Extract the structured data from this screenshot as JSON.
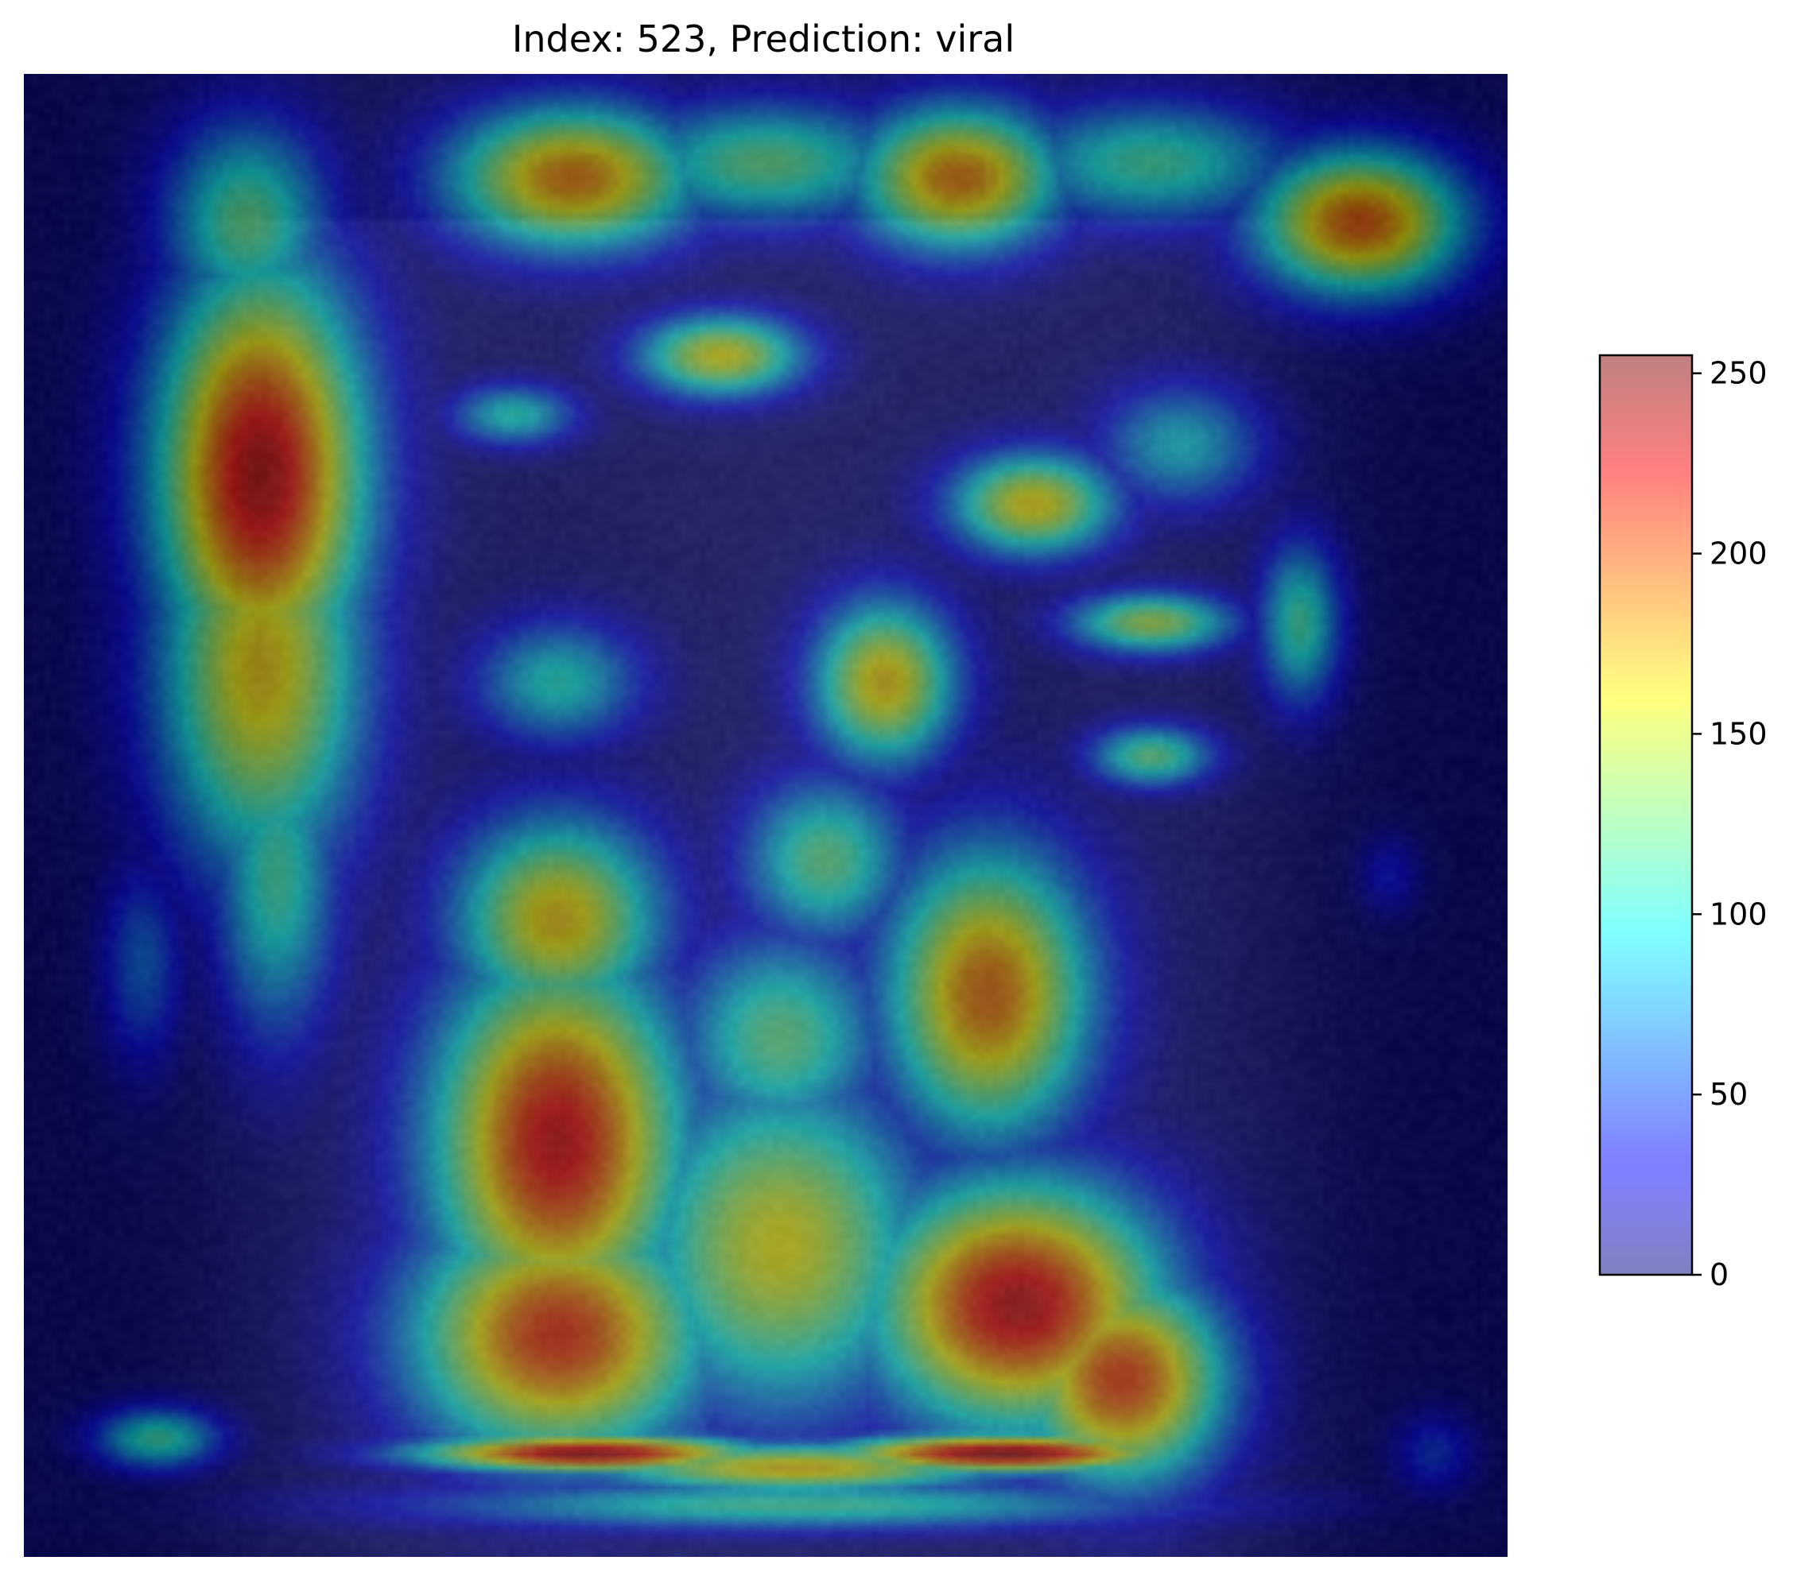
{
  "chart_data": {
    "type": "heatmap",
    "title": "Index: 523, Prediction: viral",
    "xlabel": "",
    "ylabel": "",
    "axes_visible": false,
    "grid": false,
    "colormap": "jet",
    "overlay_alpha": 0.5,
    "colorbar": {
      "placement": "right",
      "range": [
        0,
        255
      ],
      "ticks": [
        0,
        50,
        100,
        150,
        200,
        250
      ],
      "tick_labels": [
        "0",
        "50",
        "100",
        "150",
        "200",
        "250"
      ]
    },
    "hotspots": [
      {
        "x": 0.16,
        "y": 0.27,
        "value": 240,
        "sx": 0.05,
        "sy": 0.1
      },
      {
        "x": 0.16,
        "y": 0.4,
        "value": 170,
        "sx": 0.05,
        "sy": 0.1
      },
      {
        "x": 0.15,
        "y": 0.1,
        "value": 120,
        "sx": 0.04,
        "sy": 0.05
      },
      {
        "x": 0.17,
        "y": 0.54,
        "value": 110,
        "sx": 0.03,
        "sy": 0.08
      },
      {
        "x": 0.37,
        "y": 0.07,
        "value": 190,
        "sx": 0.06,
        "sy": 0.035
      },
      {
        "x": 0.63,
        "y": 0.07,
        "value": 190,
        "sx": 0.05,
        "sy": 0.035
      },
      {
        "x": 0.9,
        "y": 0.1,
        "value": 200,
        "sx": 0.05,
        "sy": 0.035
      },
      {
        "x": 0.5,
        "y": 0.06,
        "value": 120,
        "sx": 0.07,
        "sy": 0.03
      },
      {
        "x": 0.76,
        "y": 0.06,
        "value": 110,
        "sx": 0.07,
        "sy": 0.03
      },
      {
        "x": 0.47,
        "y": 0.19,
        "value": 160,
        "sx": 0.04,
        "sy": 0.02
      },
      {
        "x": 0.68,
        "y": 0.29,
        "value": 165,
        "sx": 0.04,
        "sy": 0.025
      },
      {
        "x": 0.78,
        "y": 0.25,
        "value": 90,
        "sx": 0.04,
        "sy": 0.03
      },
      {
        "x": 0.58,
        "y": 0.41,
        "value": 170,
        "sx": 0.035,
        "sy": 0.04
      },
      {
        "x": 0.36,
        "y": 0.41,
        "value": 100,
        "sx": 0.04,
        "sy": 0.03
      },
      {
        "x": 0.76,
        "y": 0.37,
        "value": 140,
        "sx": 0.04,
        "sy": 0.015
      },
      {
        "x": 0.76,
        "y": 0.46,
        "value": 120,
        "sx": 0.03,
        "sy": 0.015
      },
      {
        "x": 0.86,
        "y": 0.37,
        "value": 110,
        "sx": 0.02,
        "sy": 0.04
      },
      {
        "x": 0.33,
        "y": 0.23,
        "value": 100,
        "sx": 0.03,
        "sy": 0.015
      },
      {
        "x": 0.36,
        "y": 0.57,
        "value": 170,
        "sx": 0.05,
        "sy": 0.05
      },
      {
        "x": 0.36,
        "y": 0.72,
        "value": 230,
        "sx": 0.06,
        "sy": 0.09
      },
      {
        "x": 0.36,
        "y": 0.85,
        "value": 215,
        "sx": 0.07,
        "sy": 0.06
      },
      {
        "x": 0.65,
        "y": 0.62,
        "value": 195,
        "sx": 0.05,
        "sy": 0.07
      },
      {
        "x": 0.67,
        "y": 0.83,
        "value": 235,
        "sx": 0.07,
        "sy": 0.06
      },
      {
        "x": 0.74,
        "y": 0.88,
        "value": 210,
        "sx": 0.05,
        "sy": 0.05
      },
      {
        "x": 0.51,
        "y": 0.79,
        "value": 160,
        "sx": 0.07,
        "sy": 0.08
      },
      {
        "x": 0.51,
        "y": 0.65,
        "value": 120,
        "sx": 0.05,
        "sy": 0.05
      },
      {
        "x": 0.54,
        "y": 0.53,
        "value": 120,
        "sx": 0.04,
        "sy": 0.04
      },
      {
        "x": 0.38,
        "y": 0.93,
        "value": 245,
        "sx": 0.08,
        "sy": 0.009
      },
      {
        "x": 0.66,
        "y": 0.93,
        "value": 250,
        "sx": 0.08,
        "sy": 0.009
      },
      {
        "x": 0.52,
        "y": 0.94,
        "value": 170,
        "sx": 0.1,
        "sy": 0.012
      },
      {
        "x": 0.52,
        "y": 0.965,
        "value": 110,
        "sx": 0.18,
        "sy": 0.012
      },
      {
        "x": 0.09,
        "y": 0.92,
        "value": 110,
        "sx": 0.03,
        "sy": 0.015
      },
      {
        "x": 0.08,
        "y": 0.6,
        "value": 60,
        "sx": 0.02,
        "sy": 0.05
      },
      {
        "x": 0.95,
        "y": 0.93,
        "value": 45,
        "sx": 0.02,
        "sy": 0.02
      },
      {
        "x": 0.92,
        "y": 0.54,
        "value": 35,
        "sx": 0.015,
        "sy": 0.02
      }
    ]
  }
}
